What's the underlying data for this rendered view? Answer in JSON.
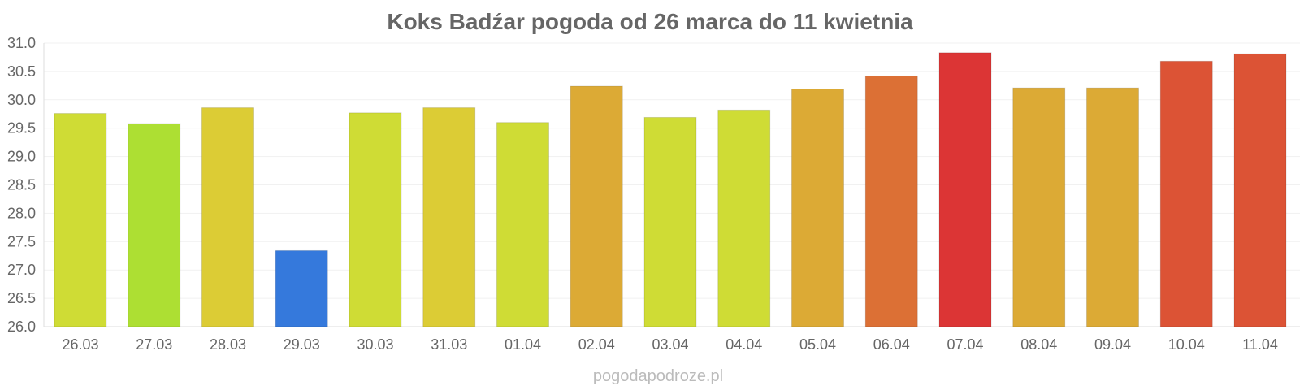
{
  "chart_data": {
    "type": "bar",
    "title": "Koks Badźar pogoda od 26 marca do 11 kwietnia",
    "xlabel": "",
    "ylabel": "",
    "ylim": [
      26.0,
      31.0
    ],
    "yticks": [
      "26.0",
      "26.5",
      "27.0",
      "27.5",
      "28.0",
      "28.5",
      "29.0",
      "29.5",
      "30.0",
      "30.5",
      "31.0"
    ],
    "grid": true,
    "categories": [
      "26.03",
      "27.03",
      "28.03",
      "29.03",
      "30.03",
      "31.03",
      "01.04",
      "02.04",
      "03.04",
      "04.04",
      "05.04",
      "06.04",
      "07.04",
      "08.04",
      "09.04",
      "10.04",
      "11.04"
    ],
    "values": [
      29.76,
      29.58,
      29.86,
      27.34,
      29.77,
      29.86,
      29.6,
      30.24,
      29.69,
      29.82,
      30.19,
      30.42,
      30.83,
      30.21,
      30.21,
      30.68,
      30.81
    ],
    "colors": [
      "#cfdc35",
      "#addf33",
      "#dccc35",
      "#3579dc",
      "#cfdc35",
      "#dccc35",
      "#cfdc35",
      "#dcaa35",
      "#cfdc35",
      "#cfdc35",
      "#dcaa35",
      "#dc7035",
      "#dc3535",
      "#dcaa35",
      "#dcaa35",
      "#dc5335",
      "#dc5335"
    ]
  },
  "watermark": "pogodapodroze.pl"
}
